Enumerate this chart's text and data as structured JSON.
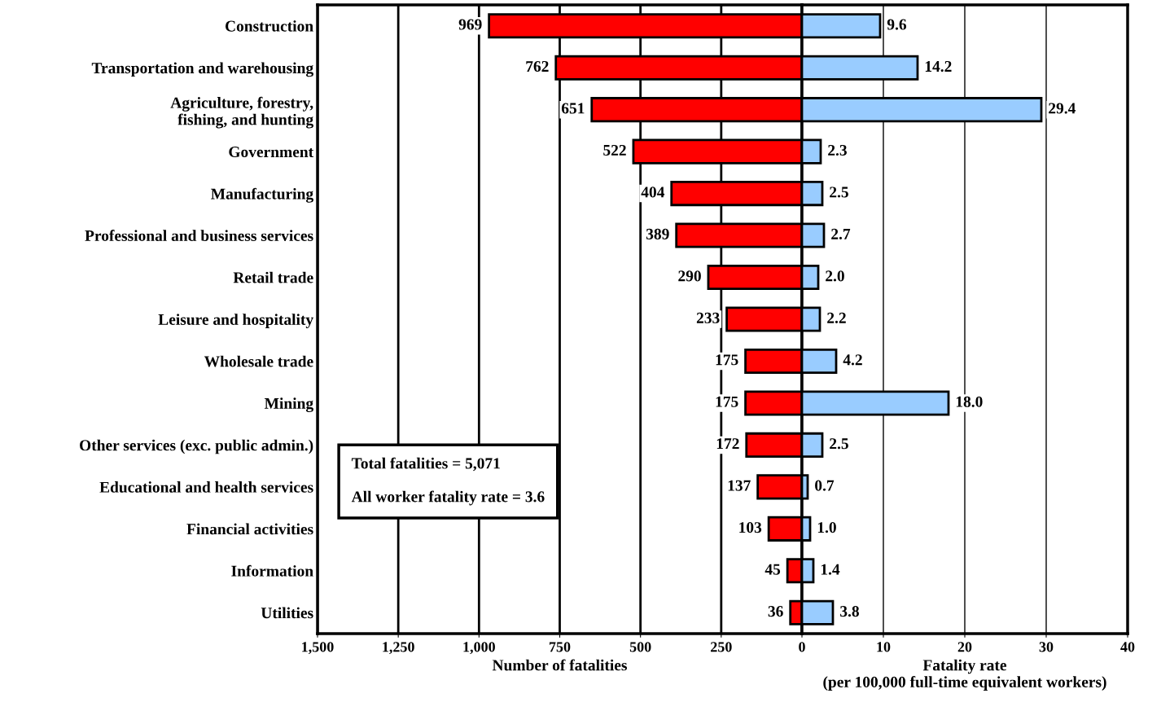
{
  "chart_data": [
    {
      "type": "bar",
      "orientation": "horizontal",
      "xlabel": "Number of fatalities",
      "categories": [
        "Construction",
        "Transportation and warehousing",
        "Agriculture, forestry,\nfishing, and hunting",
        "Government",
        "Manufacturing",
        "Professional and business services",
        "Retail trade",
        "Leisure and hospitality",
        "Wholesale trade",
        "Mining",
        "Other services (exc. public admin.)",
        "Educational and health services",
        "Financial activities",
        "Information",
        "Utilities"
      ],
      "series": [
        {
          "color": "#ff0000",
          "values": [
            969,
            762,
            651,
            522,
            404,
            389,
            290,
            233,
            175,
            175,
            172,
            137,
            103,
            45,
            36
          ]
        }
      ],
      "xlim": [
        1500,
        0
      ],
      "xticks": [
        {
          "value": 1500,
          "label": "1,500"
        },
        {
          "value": 1250,
          "label": "1,250"
        },
        {
          "value": 1000,
          "label": "1,000"
        },
        750,
        500,
        250
      ],
      "grid": "x",
      "data_labels": true,
      "annotations": [
        "Total fatalities = 5,071\n\nAll worker fatality rate = 3.6"
      ]
    },
    {
      "type": "bar",
      "orientation": "horizontal",
      "xlabel": "Fatality rate\n(per 100,000 full-time equivalent workers)",
      "categories": [
        null,
        null,
        null,
        null,
        null,
        null,
        null,
        null,
        null,
        null,
        null,
        null,
        null,
        null,
        null
      ],
      "series": [
        {
          "color": "#99ccff",
          "values": [
            9.6,
            14.2,
            29.4,
            2.3,
            2.5,
            2.7,
            2.0,
            2.2,
            4.2,
            18.0,
            2.5,
            0.7,
            1.0,
            1.4,
            3.8
          ],
          "value_labels": [
            "9.6",
            "14.2",
            "29.4",
            "2.3",
            "2.5",
            "2.7",
            "2.0",
            "2.2",
            "4.2",
            "18.0",
            "2.5",
            "0.7",
            "1.0",
            "1.4",
            "3.8"
          ]
        }
      ],
      "xlim": [
        0,
        40
      ],
      "xticks": [
        0,
        10,
        20,
        30,
        40
      ],
      "grid": "x",
      "tick_labels": "x"
    }
  ]
}
